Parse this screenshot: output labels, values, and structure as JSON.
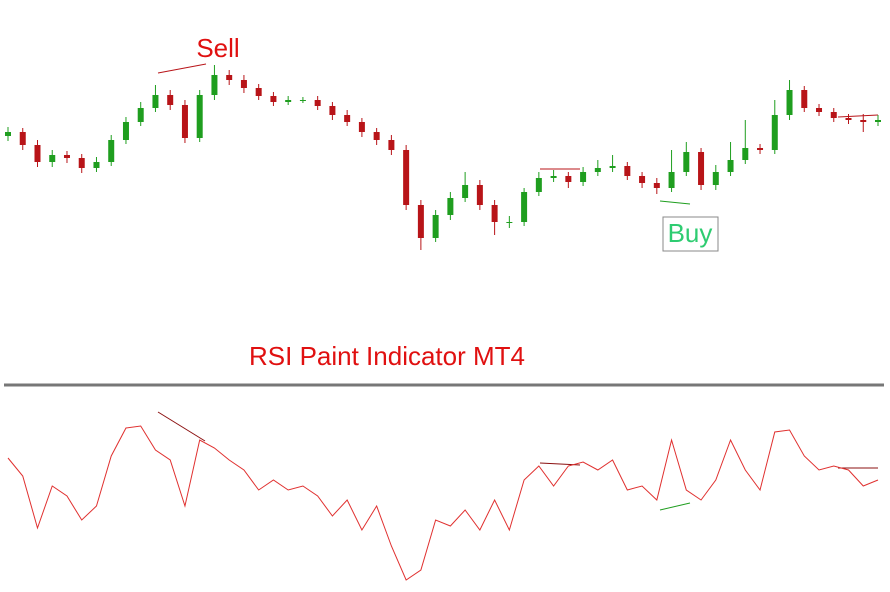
{
  "chart_data": [
    {
      "type": "candlestick",
      "annotations": [
        "Sell",
        "Buy"
      ],
      "up_color": "#1f9e1f",
      "down_color": "#b81418",
      "ylim": [
        0,
        300
      ],
      "open": [
        164,
        168,
        155,
        138,
        145,
        142,
        132,
        138,
        160,
        178,
        192,
        205,
        195,
        162,
        205,
        225,
        220,
        212,
        204,
        198,
        200,
        200,
        194,
        185,
        178,
        168,
        160,
        150,
        95,
        62,
        85,
        102,
        115,
        95,
        78,
        78,
        108,
        122,
        124,
        118,
        128,
        132,
        134,
        124,
        117,
        112,
        128,
        148,
        115,
        128,
        140,
        152,
        150,
        185,
        210,
        192,
        188,
        182,
        180,
        178
      ],
      "close": [
        168,
        155,
        138,
        145,
        142,
        132,
        138,
        160,
        178,
        192,
        205,
        195,
        162,
        205,
        225,
        220,
        212,
        204,
        198,
        200,
        200,
        194,
        185,
        178,
        168,
        160,
        150,
        95,
        62,
        85,
        102,
        115,
        95,
        78,
        78,
        108,
        122,
        124,
        118,
        128,
        132,
        134,
        124,
        117,
        112,
        128,
        148,
        115,
        128,
        140,
        152,
        150,
        185,
        210,
        192,
        188,
        182,
        180,
        178,
        180
      ],
      "high": [
        173,
        172,
        160,
        150,
        149,
        146,
        143,
        165,
        183,
        198,
        215,
        210,
        200,
        210,
        235,
        230,
        225,
        216,
        208,
        204,
        203,
        204,
        198,
        190,
        182,
        172,
        165,
        155,
        100,
        90,
        108,
        128,
        120,
        100,
        84,
        112,
        128,
        130,
        128,
        133,
        140,
        145,
        138,
        128,
        122,
        150,
        158,
        152,
        135,
        158,
        180,
        156,
        200,
        220,
        214,
        196,
        192,
        186,
        186,
        185
      ],
      "low": [
        159,
        150,
        133,
        133,
        137,
        127,
        128,
        134,
        156,
        174,
        188,
        190,
        157,
        158,
        200,
        215,
        207,
        200,
        194,
        195,
        197,
        190,
        180,
        174,
        163,
        155,
        145,
        90,
        50,
        58,
        80,
        98,
        90,
        65,
        72,
        74,
        104,
        118,
        112,
        114,
        124,
        128,
        120,
        112,
        106,
        108,
        124,
        110,
        110,
        124,
        136,
        146,
        146,
        180,
        188,
        184,
        178,
        176,
        168,
        174
      ]
    },
    {
      "type": "line",
      "title": "RSI Paint Indicator MT4",
      "color": "#e0302f",
      "ylim": [
        0,
        100
      ],
      "values": [
        66,
        57,
        31,
        52,
        47,
        35,
        42,
        67,
        81,
        82,
        70,
        65,
        42,
        75,
        71,
        65,
        60,
        50,
        55,
        50,
        52,
        47,
        37,
        45,
        30,
        42,
        22,
        5,
        10,
        35,
        32,
        40,
        30,
        45,
        30,
        55,
        62,
        52,
        62,
        64,
        60,
        65,
        50,
        52,
        45,
        75,
        50,
        45,
        55,
        75,
        60,
        50,
        79,
        80,
        67,
        60,
        62,
        60,
        52,
        55
      ]
    }
  ]
}
